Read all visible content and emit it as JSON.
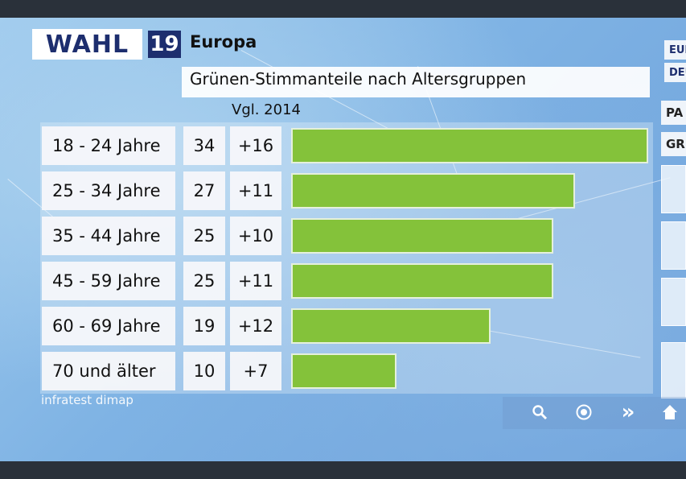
{
  "header": {
    "logo_text": "WAHL",
    "logo_number": "19",
    "title": "Europa",
    "subtitle": "Grünen-Stimmanteile nach Altersgruppen",
    "compare_label": "Vgl. 2014"
  },
  "source": "infratest dimap",
  "sidebar": {
    "buttons": [
      "EUR",
      "DEU",
      "PA",
      "GR"
    ]
  },
  "nav": {
    "icons": [
      "search-icon",
      "target-icon",
      "forward-icon",
      "home-icon"
    ],
    "forward_glyph": "»"
  },
  "colors": {
    "bar": "#84c23a",
    "logo_navy": "#1d2e6e"
  },
  "chart_data": {
    "type": "bar",
    "orientation": "horizontal",
    "title": "Grünen-Stimmanteile nach Altersgruppen",
    "categories": [
      "18 - 24 Jahre",
      "25 - 34 Jahre",
      "35 - 44 Jahre",
      "45 - 59 Jahre",
      "60 - 69 Jahre",
      "70 und älter"
    ],
    "values": [
      34,
      27,
      25,
      25,
      19,
      10
    ],
    "value_labels": [
      "34",
      "27",
      "25",
      "25",
      "19",
      "10"
    ],
    "change_vs_2014": [
      "+16",
      "+11",
      "+10",
      "+11",
      "+12",
      "+7"
    ],
    "xlim": [
      0,
      34
    ],
    "grid": false
  }
}
